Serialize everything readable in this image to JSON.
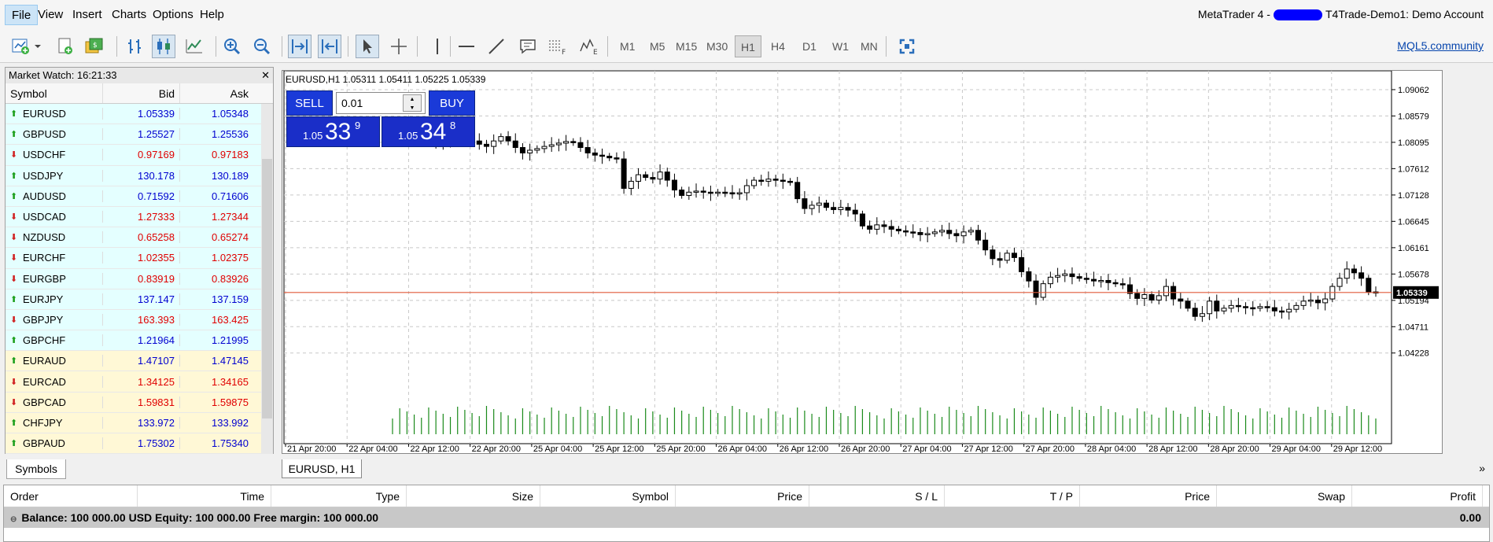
{
  "menu": {
    "items": [
      "File",
      "View",
      "Insert",
      "Charts",
      "Options",
      "Help"
    ],
    "active": "File"
  },
  "account": {
    "app": "MetaTrader 4 -",
    "server": "T4Trade-Demo1: Demo Account"
  },
  "toolbar": {
    "timeframes": [
      "M1",
      "M5",
      "M15",
      "M30",
      "H1",
      "H4",
      "D1",
      "W1",
      "MN"
    ],
    "active_timeframe": "H1",
    "community_link": "MQL5.community"
  },
  "market_watch": {
    "title": "Market Watch: 16:21:33",
    "columns": {
      "symbol": "Symbol",
      "bid": "Bid",
      "ask": "Ask"
    },
    "rows": [
      {
        "symbol": "EURUSD",
        "bid": "1.05339",
        "ask": "1.05348",
        "dir": "up",
        "color": "blue",
        "bg": "cyan"
      },
      {
        "symbol": "GBPUSD",
        "bid": "1.25527",
        "ask": "1.25536",
        "dir": "up",
        "color": "blue",
        "bg": "cyan"
      },
      {
        "symbol": "USDCHF",
        "bid": "0.97169",
        "ask": "0.97183",
        "dir": "down",
        "color": "red",
        "bg": "cyan"
      },
      {
        "symbol": "USDJPY",
        "bid": "130.178",
        "ask": "130.189",
        "dir": "up",
        "color": "blue",
        "bg": "cyan"
      },
      {
        "symbol": "AUDUSD",
        "bid": "0.71592",
        "ask": "0.71606",
        "dir": "up",
        "color": "blue",
        "bg": "cyan"
      },
      {
        "symbol": "USDCAD",
        "bid": "1.27333",
        "ask": "1.27344",
        "dir": "down",
        "color": "red",
        "bg": "cyan"
      },
      {
        "symbol": "NZDUSD",
        "bid": "0.65258",
        "ask": "0.65274",
        "dir": "down",
        "color": "red",
        "bg": "cyan"
      },
      {
        "symbol": "EURCHF",
        "bid": "1.02355",
        "ask": "1.02375",
        "dir": "down",
        "color": "red",
        "bg": "cyan"
      },
      {
        "symbol": "EURGBP",
        "bid": "0.83919",
        "ask": "0.83926",
        "dir": "down",
        "color": "red",
        "bg": "cyan"
      },
      {
        "symbol": "EURJPY",
        "bid": "137.147",
        "ask": "137.159",
        "dir": "up",
        "color": "blue",
        "bg": "cyan"
      },
      {
        "symbol": "GBPJPY",
        "bid": "163.393",
        "ask": "163.425",
        "dir": "down",
        "color": "red",
        "bg": "cyan"
      },
      {
        "symbol": "GBPCHF",
        "bid": "1.21964",
        "ask": "1.21995",
        "dir": "up",
        "color": "blue",
        "bg": "cyan"
      },
      {
        "symbol": "EURAUD",
        "bid": "1.47107",
        "ask": "1.47145",
        "dir": "up",
        "color": "blue",
        "bg": "yellow"
      },
      {
        "symbol": "EURCAD",
        "bid": "1.34125",
        "ask": "1.34165",
        "dir": "down",
        "color": "red",
        "bg": "yellow"
      },
      {
        "symbol": "GBPCAD",
        "bid": "1.59831",
        "ask": "1.59875",
        "dir": "down",
        "color": "red",
        "bg": "yellow"
      },
      {
        "symbol": "CHFJPY",
        "bid": "133.972",
        "ask": "133.992",
        "dir": "up",
        "color": "blue",
        "bg": "yellow"
      },
      {
        "symbol": "GBPAUD",
        "bid": "1.75302",
        "ask": "1.75340",
        "dir": "up",
        "color": "blue",
        "bg": "yellow"
      }
    ],
    "tab": "Symbols"
  },
  "chart": {
    "header": "EURUSD,H1  1.05311 1.05411 1.05225 1.05339",
    "tab": "EURUSD, H1",
    "one_click": {
      "sell_label": "SELL",
      "buy_label": "BUY",
      "lot": "0.01",
      "sell_small": "1.05",
      "sell_big": "33",
      "sell_sup": "9",
      "buy_small": "1.05",
      "buy_big": "34",
      "buy_sup": "8"
    }
  },
  "chart_data": {
    "type": "candlestick",
    "symbol": "EURUSD",
    "timeframe": "H1",
    "ylim": [
      1.0395,
      1.0935
    ],
    "y_ticks": [
      "1.09062",
      "1.08579",
      "1.08095",
      "1.07612",
      "1.07128",
      "1.06645",
      "1.06161",
      "1.05678",
      "1.05194",
      "1.04711",
      "1.04228"
    ],
    "x_ticks": [
      "21 Apr 20:00",
      "22 Apr 04:00",
      "22 Apr 12:00",
      "22 Apr 20:00",
      "25 Apr 04:00",
      "25 Apr 12:00",
      "25 Apr 20:00",
      "26 Apr 04:00",
      "26 Apr 12:00",
      "26 Apr 20:00",
      "27 Apr 04:00",
      "27 Apr 12:00",
      "27 Apr 20:00",
      "28 Apr 04:00",
      "28 Apr 12:00",
      "28 Apr 20:00",
      "29 Apr 04:00",
      "29 Apr 12:00"
    ],
    "current_price": "1.05339",
    "current_price_value": 1.05339,
    "bid_line_color": "#e05a3a",
    "volume_color": "#1a8a1a",
    "closes": [
      1.084,
      1.0843,
      1.0838,
      1.083,
      1.0822,
      1.0815,
      1.0806,
      1.0812,
      1.082,
      1.0826,
      1.0822,
      1.0812,
      1.0806,
      1.0802,
      1.0812,
      1.082,
      1.0812,
      1.08,
      1.079,
      1.0795,
      1.0798,
      1.0802,
      1.0805,
      1.0808,
      1.0811,
      1.0809,
      1.08,
      1.079,
      1.0786,
      1.0784,
      1.0781,
      1.0779,
      1.0725,
      1.0738,
      1.075,
      1.0745,
      1.0742,
      1.0755,
      1.074,
      1.0722,
      1.0712,
      1.0718,
      1.072,
      1.0718,
      1.0716,
      1.0718,
      1.0717,
      1.0716,
      1.0717,
      1.073,
      1.074,
      1.0738,
      1.0742,
      1.074,
      1.0738,
      1.0736,
      1.0706,
      1.0688,
      1.0694,
      1.0698,
      1.069,
      1.0686,
      1.069,
      1.0685,
      1.0678,
      1.0656,
      1.065,
      1.0658,
      1.0655,
      1.065,
      1.0647,
      1.0645,
      1.0644,
      1.064,
      1.0642,
      1.0645,
      1.0648,
      1.0642,
      1.0638,
      1.0645,
      1.0648,
      1.063,
      1.0612,
      1.0596,
      1.0593,
      1.0606,
      1.0598,
      1.0572,
      1.0555,
      1.0525,
      1.055,
      1.0562,
      1.0565,
      1.0568,
      1.0563,
      1.056,
      1.0558,
      1.0555,
      1.0556,
      1.0552,
      1.055,
      1.0548,
      1.0532,
      1.0523,
      1.053,
      1.052,
      1.0528,
      1.0545,
      1.0522,
      1.0518,
      1.0505,
      1.049,
      1.0495,
      1.0518,
      1.05,
      1.0505,
      1.051,
      1.0508,
      1.0506,
      1.0505,
      1.0508,
      1.0506,
      1.05,
      1.0498,
      1.0503,
      1.051,
      1.0518,
      1.052,
      1.0515,
      1.0522,
      1.0545,
      1.056,
      1.0577,
      1.057,
      1.056,
      1.0535,
      1.0534
    ]
  },
  "terminal": {
    "columns": [
      "Order",
      "Time",
      "Type",
      "Size",
      "Symbol",
      "Price",
      "S / L",
      "T / P",
      "Price",
      "Swap",
      "Profit"
    ],
    "balance_line": "Balance: 100 000.00 USD  Equity: 100 000.00  Free margin: 100 000.00",
    "profit": "0.00"
  }
}
